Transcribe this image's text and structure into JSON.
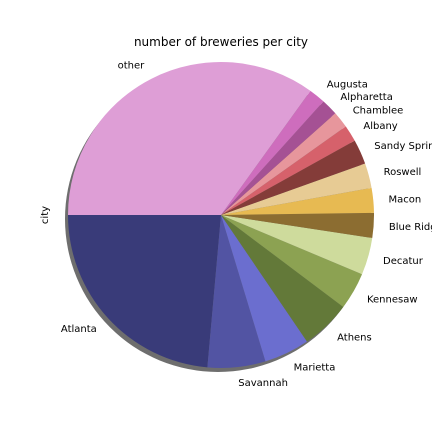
{
  "chart_data": {
    "type": "pie",
    "title": "number of breweries per city",
    "ylabel": "city",
    "start_angle_deg": 180,
    "direction": "counterclockwise",
    "shadow": true,
    "legend": "none",
    "categories": [
      "Atlanta",
      "Savannah",
      "Marietta",
      "Athens",
      "Kennesaw",
      "Decatur",
      "Blue Ridge",
      "Macon",
      "Roswell",
      "Sandy Springs",
      "Albany",
      "Chamblee",
      "Alpharetta",
      "Augusta",
      "other"
    ],
    "values": [
      27,
      7,
      5.5,
      6,
      4.5,
      4.5,
      3,
      3,
      3,
      3,
      2,
      2,
      2,
      2,
      40
    ],
    "colors": [
      "#393b79",
      "#5254a3",
      "#6b6ecf",
      "#637939",
      "#8ca252",
      "#cedb9c",
      "#8c6d31",
      "#e7ba52",
      "#e7cb94",
      "#843c39",
      "#d6616b",
      "#e7969c",
      "#a55194",
      "#ce6dbd",
      "#de9ed6"
    ]
  }
}
